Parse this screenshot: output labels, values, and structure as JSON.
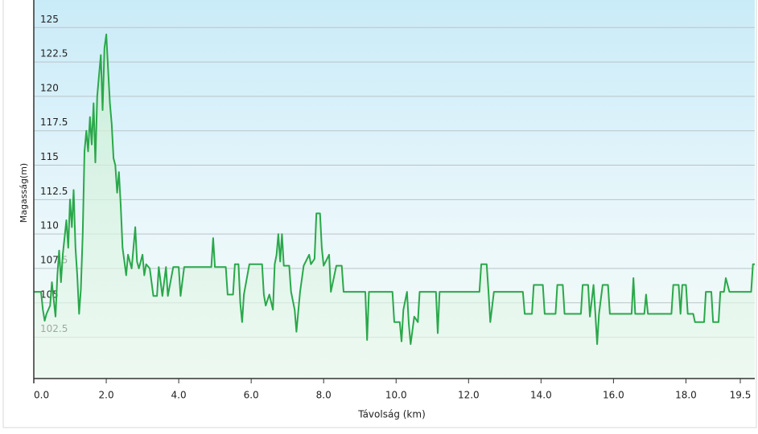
{
  "chart_data": {
    "type": "line",
    "xlabel": "Távolság  (km)",
    "ylabel": "Magasság(m)",
    "color": "#2aa84a",
    "grid": true,
    "xlim": [
      0,
      19.9
    ],
    "ylim": [
      99.5,
      127
    ],
    "xticks": [
      {
        "value": 0,
        "label": "0.0"
      },
      {
        "value": 2,
        "label": "2.0"
      },
      {
        "value": 4,
        "label": "4.0"
      },
      {
        "value": 6,
        "label": "6.0"
      },
      {
        "value": 8,
        "label": "8.0"
      },
      {
        "value": 10,
        "label": "10.0"
      },
      {
        "value": 12,
        "label": "12.0"
      },
      {
        "value": 14,
        "label": "14.0"
      },
      {
        "value": 16,
        "label": "16.0"
      },
      {
        "value": 18,
        "label": "18.0"
      },
      19.5
    ],
    "yticks": [
      102.5,
      105,
      107.5,
      110,
      112.5,
      115,
      117.5,
      120,
      122.5,
      125
    ],
    "x": [
      0,
      0.2,
      0.25,
      0.3,
      0.35,
      0.45,
      0.5,
      0.55,
      0.6,
      0.65,
      0.7,
      0.75,
      0.8,
      0.9,
      0.95,
      1.0,
      1.05,
      1.1,
      1.15,
      1.2,
      1.25,
      1.3,
      1.35,
      1.4,
      1.45,
      1.5,
      1.55,
      1.6,
      1.65,
      1.7,
      1.75,
      1.8,
      1.85,
      1.9,
      1.95,
      2.0,
      2.05,
      2.1,
      2.15,
      2.2,
      2.25,
      2.3,
      2.35,
      2.4,
      2.45,
      2.5,
      2.55,
      2.6,
      2.7,
      2.8,
      2.85,
      2.9,
      3.0,
      3.05,
      3.1,
      3.2,
      3.3,
      3.4,
      3.45,
      3.55,
      3.65,
      3.7,
      3.85,
      4.0,
      4.05,
      4.15,
      4.9,
      4.95,
      5.0,
      5.3,
      5.35,
      5.5,
      5.55,
      5.65,
      5.7,
      5.75,
      5.8,
      5.95,
      6.3,
      6.35,
      6.4,
      6.5,
      6.6,
      6.65,
      6.7,
      6.75,
      6.8,
      6.85,
      6.9,
      7.05,
      7.1,
      7.2,
      7.25,
      7.35,
      7.45,
      7.6,
      7.65,
      7.75,
      7.8,
      7.9,
      7.95,
      8.0,
      8.15,
      8.2,
      8.35,
      8.5,
      8.55,
      9.15,
      9.2,
      9.25,
      9.9,
      9.95,
      10.1,
      10.15,
      10.2,
      10.3,
      10.35,
      10.4,
      10.5,
      10.6,
      10.65,
      11.1,
      11.15,
      11.2,
      12.3,
      12.35,
      12.5,
      12.55,
      12.6,
      12.7,
      13.5,
      13.55,
      13.75,
      13.8,
      14.05,
      14.1,
      14.4,
      14.45,
      14.6,
      14.65,
      15.1,
      15.15,
      15.3,
      15.35,
      15.45,
      15.5,
      15.55,
      15.6,
      15.7,
      15.85,
      15.9,
      16.5,
      16.55,
      16.6,
      16.85,
      16.9,
      16.95,
      17.6,
      17.65,
      17.8,
      17.85,
      17.9,
      18.0,
      18.05,
      18.2,
      18.25,
      18.5,
      18.55,
      18.7,
      18.75,
      18.9,
      18.95,
      19.05,
      19.1,
      19.2,
      19.8,
      19.85,
      19.9
    ],
    "values": [
      105.8,
      105.8,
      104.5,
      103.7,
      104.2,
      104.8,
      106.5,
      105.2,
      104.0,
      107.0,
      108.8,
      106.5,
      108.5,
      111,
      109,
      112.5,
      110.5,
      113.2,
      109,
      107,
      104.2,
      106,
      110,
      116,
      117.5,
      116,
      118.5,
      116.5,
      119.5,
      115.2,
      120,
      121.5,
      123,
      119,
      123.5,
      124.5,
      122,
      119.5,
      118,
      115.5,
      115,
      113,
      114.5,
      112,
      109,
      108,
      107,
      108.5,
      107.5,
      110.5,
      108,
      107.5,
      108.5,
      107,
      107.8,
      107.5,
      105.5,
      105.5,
      107.6,
      105.5,
      107.6,
      105.5,
      107.6,
      107.6,
      105.5,
      107.6,
      107.6,
      109.7,
      107.6,
      107.6,
      105.6,
      105.6,
      107.8,
      107.8,
      105,
      103.6,
      105.6,
      107.8,
      107.8,
      105.6,
      104.8,
      105.6,
      104.5,
      107.8,
      108.5,
      110,
      108,
      110,
      107.7,
      107.7,
      105.8,
      104.5,
      102.9,
      105.8,
      107.7,
      108.5,
      107.8,
      108.2,
      111.5,
      111.5,
      109,
      107.7,
      108.5,
      105.8,
      107.7,
      107.7,
      105.8,
      105.8,
      102.3,
      105.8,
      105.8,
      103.6,
      103.6,
      102.2,
      104.5,
      105.8,
      103.5,
      102,
      104,
      103.6,
      105.8,
      105.8,
      102.8,
      105.8,
      105.8,
      107.8,
      107.8,
      105.8,
      103.6,
      105.8,
      105.8,
      104.2,
      104.2,
      106.3,
      106.3,
      104.2,
      104.2,
      106.3,
      106.3,
      104.2,
      104.2,
      106.3,
      106.3,
      104,
      106.3,
      104.2,
      102,
      104.2,
      106.3,
      106.3,
      104.2,
      104.2,
      106.8,
      104.2,
      104.2,
      105.6,
      104.2,
      104.2,
      106.3,
      106.3,
      104.2,
      106.3,
      106.3,
      104.2,
      104.2,
      103.6,
      103.6,
      105.8,
      105.8,
      103.6,
      103.6,
      105.8,
      105.8,
      106.8,
      105.8,
      105.8,
      107.8,
      107.8
    ]
  }
}
